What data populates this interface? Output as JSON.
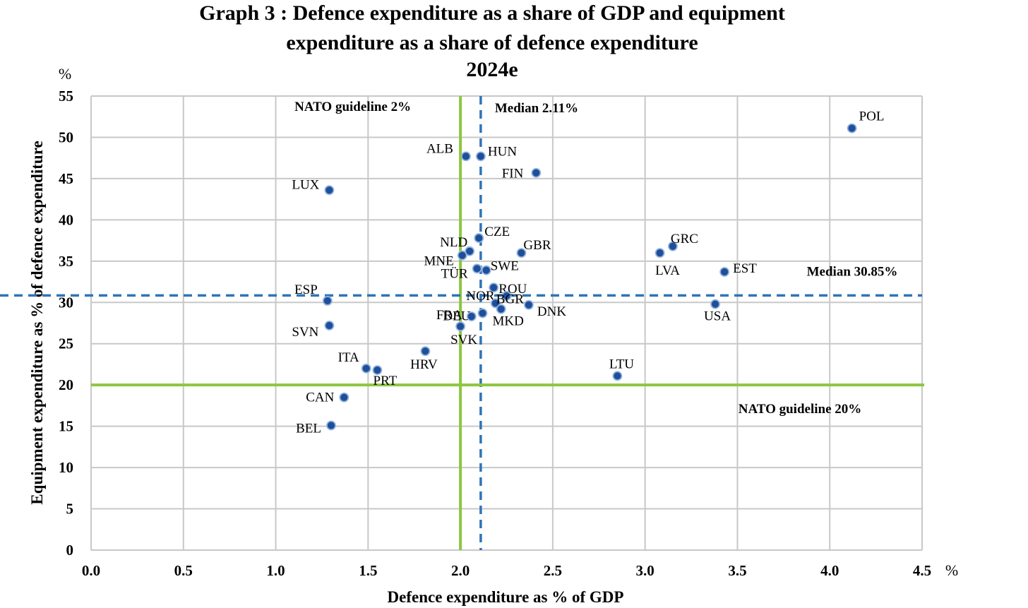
{
  "chart_data": {
    "type": "scatter",
    "title": [
      "Graph 3 : Defence expenditure as a share of GDP and equipment",
      "expenditure as a share of defence expenditure",
      "2024e"
    ],
    "xlabel": "Defence expenditure as % of GDP",
    "ylabel": "Equipment expenditure as % of defence expenditure",
    "x_unit": "%",
    "y_unit": "%",
    "xlim": [
      0,
      4.5
    ],
    "ylim": [
      0,
      55
    ],
    "x_ticks": [
      "0.0",
      "0.5",
      "1.0",
      "1.5",
      "2.0",
      "2.5",
      "3.0",
      "3.5",
      "4.0",
      "4.5"
    ],
    "y_ticks": [
      "0",
      "5",
      "10",
      "15",
      "20",
      "25",
      "30",
      "35",
      "40",
      "45",
      "50",
      "55"
    ],
    "grid": true,
    "marker_color": "#1f4e9a",
    "marker_edge": "#8fb3de",
    "points": [
      {
        "label": "POL",
        "x": 4.12,
        "y": 51.1
      },
      {
        "label": "ALB",
        "x": 2.03,
        "y": 47.7
      },
      {
        "label": "HUN",
        "x": 2.11,
        "y": 47.7
      },
      {
        "label": "FIN",
        "x": 2.41,
        "y": 45.7
      },
      {
        "label": "LUX",
        "x": 1.29,
        "y": 43.6
      },
      {
        "label": "CZE",
        "x": 2.1,
        "y": 37.8
      },
      {
        "label": "GRC",
        "x": 3.15,
        "y": 36.8
      },
      {
        "label": "NLD",
        "x": 2.05,
        "y": 36.2
      },
      {
        "label": "GBR",
        "x": 2.33,
        "y": 36.0
      },
      {
        "label": "LVA",
        "x": 3.08,
        "y": 36.0
      },
      {
        "label": "MNE",
        "x": 2.01,
        "y": 35.7
      },
      {
        "label": "TÜR",
        "x": 2.09,
        "y": 34.1
      },
      {
        "label": "SWE",
        "x": 2.14,
        "y": 33.9
      },
      {
        "label": "EST",
        "x": 3.43,
        "y": 33.7
      },
      {
        "label": "ROU",
        "x": 2.18,
        "y": 31.8
      },
      {
        "label": "NOR",
        "x": 2.25,
        "y": 30.8
      },
      {
        "label": "ESP",
        "x": 1.28,
        "y": 30.2
      },
      {
        "label": "BGR",
        "x": 2.19,
        "y": 29.9
      },
      {
        "label": "USA",
        "x": 3.38,
        "y": 29.8
      },
      {
        "label": "DNK",
        "x": 2.37,
        "y": 29.7
      },
      {
        "label": "MKD",
        "x": 2.22,
        "y": 29.2
      },
      {
        "label": "DEU",
        "x": 2.12,
        "y": 28.7
      },
      {
        "label": "FRA",
        "x": 2.06,
        "y": 28.3
      },
      {
        "label": "SVN",
        "x": 1.29,
        "y": 27.2
      },
      {
        "label": "SVK",
        "x": 2.0,
        "y": 27.1
      },
      {
        "label": "HRV",
        "x": 1.81,
        "y": 24.1
      },
      {
        "label": "ITA",
        "x": 1.49,
        "y": 22.0
      },
      {
        "label": "PRT",
        "x": 1.55,
        "y": 21.8
      },
      {
        "label": "LTU",
        "x": 2.85,
        "y": 21.1
      },
      {
        "label": "CAN",
        "x": 1.37,
        "y": 18.5
      },
      {
        "label": "BEL",
        "x": 1.3,
        "y": 15.1
      }
    ],
    "reference_lines": [
      {
        "orientation": "vertical",
        "value": 2.0,
        "style": "solid",
        "color": "#8dc63f",
        "label": "NATO guideline 2%"
      },
      {
        "orientation": "vertical",
        "value": 2.11,
        "style": "dashed",
        "color": "#2e75b6",
        "label": "Median 2.11%"
      },
      {
        "orientation": "horizontal",
        "value": 20,
        "style": "solid",
        "color": "#8dc63f",
        "label": "NATO guideline 20%"
      },
      {
        "orientation": "horizontal",
        "value": 30.85,
        "style": "dashed",
        "color": "#2e75b6",
        "label": "Median 30.85%"
      }
    ]
  }
}
